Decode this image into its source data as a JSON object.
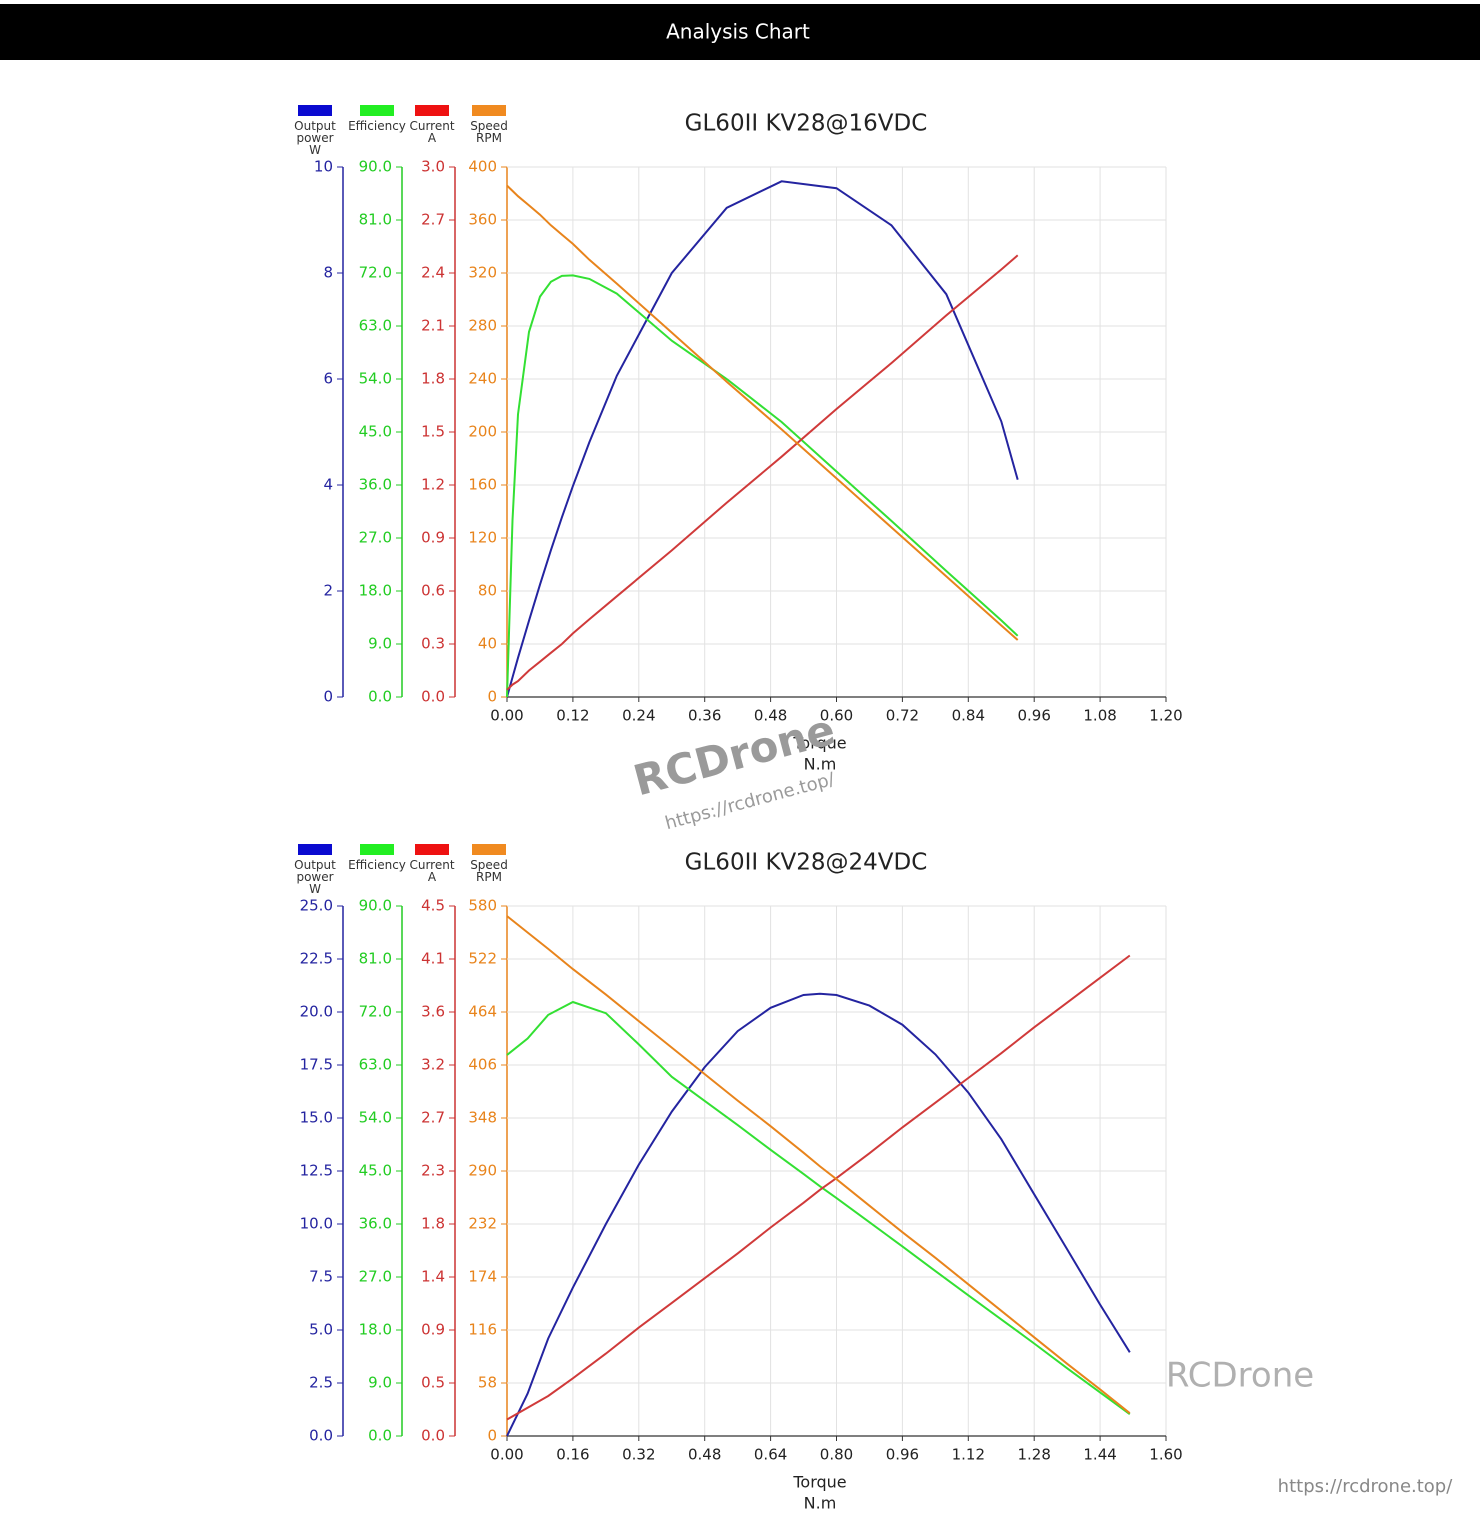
{
  "header": {
    "title": "Analysis Chart"
  },
  "chart_data": [
    {
      "type": "line",
      "title": "GL60II KV28@16VDC",
      "x_label": "Torque",
      "x_unit": "N.m",
      "grid": true,
      "legend": "top-left",
      "x": [
        0,
        0.01,
        0.02,
        0.04,
        0.06,
        0.08,
        0.1,
        0.12,
        0.15,
        0.2,
        0.3,
        0.4,
        0.5,
        0.6,
        0.7,
        0.8,
        0.9,
        0.93
      ],
      "xlim": [
        0,
        1.2
      ],
      "xticks": [
        {
          "value": 0,
          "label": "0.00"
        },
        {
          "value": 0.12,
          "label": "0.12"
        },
        {
          "value": 0.24,
          "label": "0.24"
        },
        {
          "value": 0.36,
          "label": "0.36"
        },
        {
          "value": 0.48,
          "label": "0.48"
        },
        {
          "value": 0.6,
          "label": "0.60"
        },
        {
          "value": 0.72,
          "label": "0.72"
        },
        {
          "value": 0.84,
          "label": "0.84"
        },
        {
          "value": 0.96,
          "label": "0.96"
        },
        {
          "value": 1.08,
          "label": "1.08"
        },
        {
          "value": 1.2,
          "label": "1.20"
        }
      ],
      "y_axes": [
        {
          "color": "#2424a0",
          "lim": [
            0,
            10
          ],
          "ticks": [
            0,
            2,
            4,
            6,
            8,
            10
          ]
        },
        {
          "color": "#22cc22",
          "lim": [
            0,
            90
          ],
          "ticks": [
            {
              "value": 0,
              "label": "0.0"
            },
            {
              "value": 9,
              "label": "9.0"
            },
            {
              "value": 18,
              "label": "18.0"
            },
            {
              "value": 27,
              "label": "27.0"
            },
            {
              "value": 36,
              "label": "36.0"
            },
            {
              "value": 45,
              "label": "45.0"
            },
            {
              "value": 54,
              "label": "54.0"
            },
            {
              "value": 63,
              "label": "63.0"
            },
            {
              "value": 72,
              "label": "72.0"
            },
            {
              "value": 81,
              "label": "81.0"
            },
            {
              "value": 90,
              "label": "90.0"
            }
          ]
        },
        {
          "color": "#cc3333",
          "lim": [
            0,
            3
          ],
          "ticks": [
            {
              "value": 0,
              "label": "0.0"
            },
            0.3,
            0.6,
            0.9,
            1.2,
            1.5,
            1.8,
            2.1,
            2.4,
            2.7,
            {
              "value": 3,
              "label": "3.0"
            }
          ]
        },
        {
          "color": "#e8841c",
          "lim": [
            0,
            400
          ],
          "ticks": [
            0,
            40,
            80,
            120,
            160,
            200,
            240,
            280,
            320,
            360,
            400
          ]
        }
      ],
      "series": [
        {
          "name": "Output power",
          "unit": "W",
          "color": "#2424a0",
          "swatch": "#0a0ad0",
          "axis": 0,
          "values": [
            0,
            0.37,
            0.74,
            1.44,
            2.12,
            2.77,
            3.39,
            3.98,
            4.81,
            6.06,
            8.0,
            9.23,
            9.73,
            9.6,
            8.9,
            7.6,
            5.2,
            4.1
          ]
        },
        {
          "name": "Efficiency",
          "color": "#33e033",
          "swatch": "#22ee22",
          "axis": 1,
          "values": [
            0,
            30,
            48,
            62,
            68,
            70.5,
            71.5,
            71.6,
            71,
            68.5,
            60.5,
            54,
            46.7,
            38.3,
            29.9,
            21.4,
            13,
            10.4
          ]
        },
        {
          "name": "Current",
          "unit": "A",
          "color": "#d03a3a",
          "swatch": "#ee1111",
          "axis": 2,
          "values": [
            0.04,
            0.07,
            0.09,
            0.15,
            0.2,
            0.25,
            0.3,
            0.36,
            0.44,
            0.57,
            0.83,
            1.1,
            1.36,
            1.63,
            1.89,
            2.16,
            2.42,
            2.5
          ]
        },
        {
          "name": "Speed",
          "unit": "RPM",
          "color": "#e8841c",
          "swatch": "#f08a20",
          "axis": 3,
          "values": [
            386,
            382,
            378,
            371,
            364,
            356,
            349,
            342,
            330,
            312,
            275,
            238,
            202,
            165,
            128,
            91,
            54,
            43
          ]
        }
      ]
    },
    {
      "type": "line",
      "title": "GL60II KV28@24VDC",
      "x_label": "Torque",
      "x_unit": "N.m",
      "grid": true,
      "legend": "top-left",
      "x": [
        0,
        0.05,
        0.1,
        0.16,
        0.24,
        0.32,
        0.4,
        0.48,
        0.56,
        0.64,
        0.72,
        0.76,
        0.8,
        0.88,
        0.96,
        1.04,
        1.12,
        1.2,
        1.28,
        1.36,
        1.44,
        1.512
      ],
      "xlim": [
        0,
        1.6
      ],
      "xticks": [
        {
          "value": 0,
          "label": "0.00"
        },
        {
          "value": 0.16,
          "label": "0.16"
        },
        {
          "value": 0.32,
          "label": "0.32"
        },
        {
          "value": 0.48,
          "label": "0.48"
        },
        {
          "value": 0.64,
          "label": "0.64"
        },
        {
          "value": 0.8,
          "label": "0.80"
        },
        {
          "value": 0.96,
          "label": "0.96"
        },
        {
          "value": 1.12,
          "label": "1.12"
        },
        {
          "value": 1.28,
          "label": "1.28"
        },
        {
          "value": 1.44,
          "label": "1.44"
        },
        {
          "value": 1.6,
          "label": "1.60"
        }
      ],
      "y_axes": [
        {
          "color": "#2424a0",
          "lim": [
            0,
            25
          ],
          "ticks": [
            {
              "value": 0,
              "label": "0.0"
            },
            2.5,
            {
              "value": 5,
              "label": "5.0"
            },
            7.5,
            {
              "value": 10,
              "label": "10.0"
            },
            12.5,
            {
              "value": 15,
              "label": "15.0"
            },
            17.5,
            {
              "value": 20,
              "label": "20.0"
            },
            22.5,
            {
              "value": 25,
              "label": "25.0"
            }
          ]
        },
        {
          "color": "#22cc22",
          "lim": [
            0,
            90
          ],
          "ticks": [
            {
              "value": 0,
              "label": "0.0"
            },
            {
              "value": 9,
              "label": "9.0"
            },
            {
              "value": 18,
              "label": "18.0"
            },
            {
              "value": 27,
              "label": "27.0"
            },
            {
              "value": 36,
              "label": "36.0"
            },
            {
              "value": 45,
              "label": "45.0"
            },
            {
              "value": 54,
              "label": "54.0"
            },
            {
              "value": 63,
              "label": "63.0"
            },
            {
              "value": 72,
              "label": "72.0"
            },
            {
              "value": 81,
              "label": "81.0"
            },
            {
              "value": 90,
              "label": "90.0"
            }
          ]
        },
        {
          "color": "#cc3333",
          "lim": [
            0,
            4.5
          ],
          "ticks": [
            {
              "value": 0,
              "label": "0.0"
            },
            {
              "value": 0.45,
              "label": "0.5"
            },
            0.9,
            {
              "value": 1.35,
              "label": "1.4"
            },
            1.8,
            {
              "value": 2.25,
              "label": "2.3"
            },
            2.7,
            {
              "value": 3.15,
              "label": "3.2"
            },
            3.6,
            {
              "value": 4.05,
              "label": "4.1"
            },
            4.5
          ]
        },
        {
          "color": "#e8841c",
          "lim": [
            0,
            580
          ],
          "ticks": [
            0,
            58,
            116,
            174,
            232,
            290,
            348,
            406,
            464,
            522,
            580
          ]
        }
      ],
      "series": [
        {
          "name": "Output power",
          "unit": "W",
          "color": "#2424a0",
          "swatch": "#0a0ad0",
          "axis": 0,
          "values": [
            0,
            2.0,
            4.6,
            7.0,
            10.0,
            12.8,
            15.3,
            17.4,
            19.1,
            20.2,
            20.8,
            20.86,
            20.8,
            20.3,
            19.4,
            18.0,
            16.2,
            14.0,
            11.4,
            8.8,
            6.2,
            3.95
          ]
        },
        {
          "name": "Efficiency",
          "color": "#33e033",
          "swatch": "#22ee22",
          "axis": 1,
          "values": [
            64.7,
            67.5,
            71.5,
            73.7,
            71.8,
            66.5,
            61,
            56.9,
            52.8,
            48.6,
            44.5,
            42.4,
            40.4,
            36.3,
            32.2,
            28,
            23.9,
            19.8,
            15.7,
            11.5,
            7.4,
            3.7
          ]
        },
        {
          "name": "Current",
          "unit": "A",
          "color": "#d03a3a",
          "swatch": "#ee1111",
          "axis": 2,
          "values": [
            0.14,
            0.24,
            0.34,
            0.49,
            0.7,
            0.92,
            1.13,
            1.34,
            1.55,
            1.77,
            1.98,
            2.09,
            2.19,
            2.4,
            2.62,
            2.83,
            3.04,
            3.25,
            3.47,
            3.68,
            3.89,
            4.08
          ]
        },
        {
          "name": "Speed",
          "unit": "RPM",
          "color": "#e8841c",
          "swatch": "#f08a20",
          "axis": 3,
          "values": [
            569,
            551,
            533,
            511,
            483,
            454,
            425,
            396,
            367,
            339,
            310,
            295,
            281,
            252,
            223,
            195,
            166,
            137,
            108,
            79,
            51,
            25
          ]
        }
      ]
    }
  ],
  "watermarks": [
    "RCDrone",
    "https://rcdrone.top/",
    "RCDrone",
    "https://rcdrone.top/"
  ]
}
